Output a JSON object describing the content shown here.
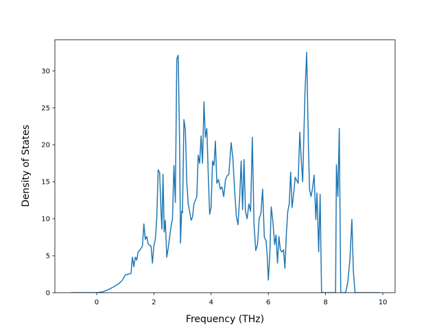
{
  "chart_data": {
    "type": "line",
    "xlabel": "Frequency (THz)",
    "ylabel": "Density of States",
    "x": [
      -0.9,
      0,
      0.2,
      0.4,
      0.6,
      0.8,
      0.9,
      1.0,
      1.1,
      1.2,
      1.25,
      1.3,
      1.35,
      1.4,
      1.45,
      1.5,
      1.55,
      1.6,
      1.65,
      1.7,
      1.75,
      1.8,
      1.85,
      1.9,
      1.95,
      2.0,
      2.05,
      2.1,
      2.15,
      2.2,
      2.25,
      2.28,
      2.32,
      2.36,
      2.4,
      2.45,
      2.5,
      2.55,
      2.6,
      2.65,
      2.7,
      2.75,
      2.8,
      2.85,
      2.9,
      2.93,
      2.97,
      3.0,
      3.05,
      3.1,
      3.15,
      3.2,
      3.25,
      3.3,
      3.35,
      3.4,
      3.45,
      3.5,
      3.55,
      3.6,
      3.65,
      3.7,
      3.75,
      3.8,
      3.85,
      3.9,
      3.95,
      4.0,
      4.05,
      4.1,
      4.15,
      4.2,
      4.26,
      4.32,
      4.38,
      4.44,
      4.5,
      4.56,
      4.62,
      4.7,
      4.76,
      4.82,
      4.88,
      4.94,
      5.0,
      5.05,
      5.1,
      5.15,
      5.2,
      5.26,
      5.32,
      5.38,
      5.44,
      5.5,
      5.56,
      5.62,
      5.68,
      5.74,
      5.8,
      5.86,
      5.92,
      5.96,
      6.0,
      6.05,
      6.1,
      6.16,
      6.22,
      6.27,
      6.32,
      6.37,
      6.42,
      6.47,
      6.53,
      6.58,
      6.63,
      6.68,
      6.73,
      6.78,
      6.83,
      6.88,
      6.94,
      6.99,
      7.04,
      7.1,
      7.15,
      7.2,
      7.28,
      7.34,
      7.4,
      7.44,
      7.49,
      7.54,
      7.6,
      7.66,
      7.7,
      7.76,
      7.81,
      7.86,
      8.35,
      8.38,
      8.43,
      8.48,
      8.53,
      8.7,
      8.78,
      8.85,
      8.92,
      8.97,
      9.03,
      9.9
    ],
    "series": [
      {
        "name": "DOS",
        "color": "#1f77b4",
        "values": [
          0,
          0,
          0.1,
          0.4,
          0.8,
          1.3,
          1.7,
          2.4,
          2.5,
          2.6,
          4.8,
          3.5,
          4.8,
          4.4,
          5.5,
          5.7,
          6.0,
          6.3,
          9.3,
          7.2,
          7.6,
          6.6,
          6.4,
          6.3,
          4.0,
          6.4,
          7.2,
          10.0,
          16.6,
          16.3,
          11.0,
          8.6,
          16.0,
          8.2,
          9.8,
          4.8,
          6.0,
          7.5,
          9.0,
          10.0,
          17.2,
          12.2,
          31.6,
          32.1,
          20.0,
          6.7,
          11.0,
          10.8,
          23.4,
          22.0,
          15.0,
          12.0,
          11.0,
          9.8,
          10.2,
          12.0,
          12.5,
          13.0,
          18.6,
          17.5,
          21.2,
          17.5,
          25.8,
          21.0,
          22.2,
          16.0,
          10.6,
          11.6,
          17.8,
          17.2,
          20.5,
          14.8,
          15.3,
          14.0,
          14.3,
          13.0,
          15.2,
          15.8,
          16.0,
          20.3,
          18.2,
          14.0,
          10.4,
          9.2,
          13.0,
          17.8,
          11.2,
          18.0,
          11.0,
          10.0,
          12.0,
          11.0,
          21.0,
          9.2,
          5.7,
          6.5,
          10.0,
          10.7,
          14.0,
          7.5,
          7.0,
          5.0,
          1.7,
          5.0,
          11.6,
          9.6,
          6.5,
          7.8,
          4.0,
          7.6,
          5.8,
          5.5,
          5.8,
          3.3,
          8.0,
          11.0,
          12.0,
          16.3,
          11.5,
          13.2,
          15.6,
          15.2,
          14.8,
          21.7,
          18.0,
          15.0,
          27.0,
          32.5,
          20.0,
          14.0,
          13.0,
          14.0,
          15.9,
          9.9,
          13.5,
          5.5,
          13.3,
          0,
          0,
          17.3,
          13.0,
          22.2,
          0,
          0,
          1.5,
          4.5,
          9.9,
          3,
          0,
          0
        ]
      }
    ],
    "xlim": [
      -1.46,
      10.43
    ],
    "ylim": [
      0,
      34.2
    ],
    "xticks": [
      0,
      2,
      4,
      6,
      8,
      10
    ],
    "yticks": [
      0,
      5,
      10,
      15,
      20,
      25,
      30
    ]
  }
}
